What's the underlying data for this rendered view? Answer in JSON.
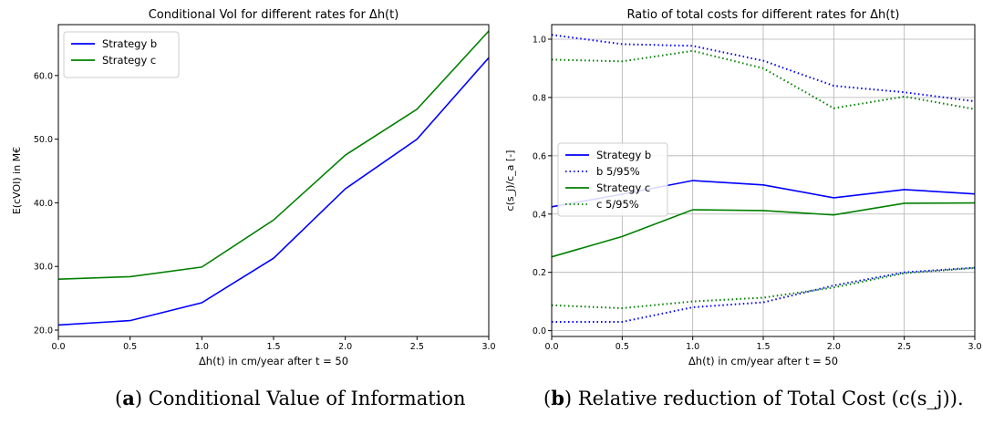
{
  "captions": {
    "a": {
      "label": "a",
      "text": "Conditional Value of Information"
    },
    "b": {
      "label": "b",
      "text": "Relative reduction of Total Cost (c(s_j))."
    }
  },
  "chart_data": [
    {
      "type": "line",
      "title": "Conditional VoI for different rates for Δh(t)",
      "xlabel": "Δh(t) in cm/year after t = 50",
      "ylabel": "E(cVOI) in M€",
      "xlim": [
        0.0,
        3.0
      ],
      "ylim": [
        19.0,
        68.0
      ],
      "xticks": [
        "0.0",
        "0.5",
        "1.0",
        "1.5",
        "2.0",
        "2.5",
        "3.0"
      ],
      "yticks": [
        "20.0",
        "30.0",
        "40.0",
        "50.0",
        "60.0"
      ],
      "grid": false,
      "legend_position": "upper left",
      "x": [
        0.0,
        0.5,
        1.0,
        1.5,
        2.0,
        2.5,
        3.0
      ],
      "series": [
        {
          "name": "Strategy b",
          "color": "#0000ff",
          "style": "solid",
          "values": [
            20.8,
            21.5,
            24.3,
            31.3,
            42.2,
            50.0,
            62.8
          ]
        },
        {
          "name": "Strategy c",
          "color": "#008000",
          "style": "solid",
          "values": [
            28.0,
            28.4,
            29.9,
            37.3,
            47.5,
            54.7,
            67.0
          ]
        }
      ]
    },
    {
      "type": "line",
      "title": "Ratio of total costs for different rates for Δh(t)",
      "xlabel": "Δh(t) in cm/year after t = 50",
      "ylabel": "c(s_j)/c_a [-]",
      "xlim": [
        0.0,
        3.0
      ],
      "ylim": [
        -0.02,
        1.05
      ],
      "xticks": [
        "0.0",
        "0.5",
        "1.0",
        "1.5",
        "2.0",
        "2.5",
        "3.0"
      ],
      "yticks": [
        "0.0",
        "0.2",
        "0.4",
        "0.6",
        "0.8",
        "1.0"
      ],
      "grid": true,
      "legend_position": "center left",
      "x": [
        0.0,
        0.5,
        1.0,
        1.5,
        2.0,
        2.5,
        3.0
      ],
      "series": [
        {
          "name": "Strategy b",
          "color": "#0000ff",
          "style": "solid",
          "legend": true,
          "values": [
            0.425,
            0.468,
            0.515,
            0.5,
            0.456,
            0.484,
            0.469
          ]
        },
        {
          "name": "b 5/95%",
          "color": "#0000ff",
          "style": "dotted",
          "legend": true,
          "values": [
            1.015,
            0.983,
            0.977,
            0.926,
            0.84,
            0.818,
            0.787
          ]
        },
        {
          "name": "Strategy c",
          "color": "#008000",
          "style": "solid",
          "legend": true,
          "values": [
            0.253,
            0.323,
            0.415,
            0.412,
            0.397,
            0.437,
            0.438
          ]
        },
        {
          "name": "c 5/95%",
          "color": "#008000",
          "style": "dotted",
          "legend": true,
          "values": [
            0.93,
            0.924,
            0.96,
            0.9,
            0.763,
            0.803,
            0.76
          ]
        },
        {
          "name": "",
          "color": "#0000ff",
          "style": "dotted",
          "legend": false,
          "values": [
            0.03,
            0.03,
            0.08,
            0.097,
            0.155,
            0.2,
            0.216
          ]
        },
        {
          "name": "",
          "color": "#008000",
          "style": "dotted",
          "legend": false,
          "values": [
            0.087,
            0.077,
            0.1,
            0.113,
            0.148,
            0.197,
            0.215
          ]
        }
      ]
    }
  ]
}
